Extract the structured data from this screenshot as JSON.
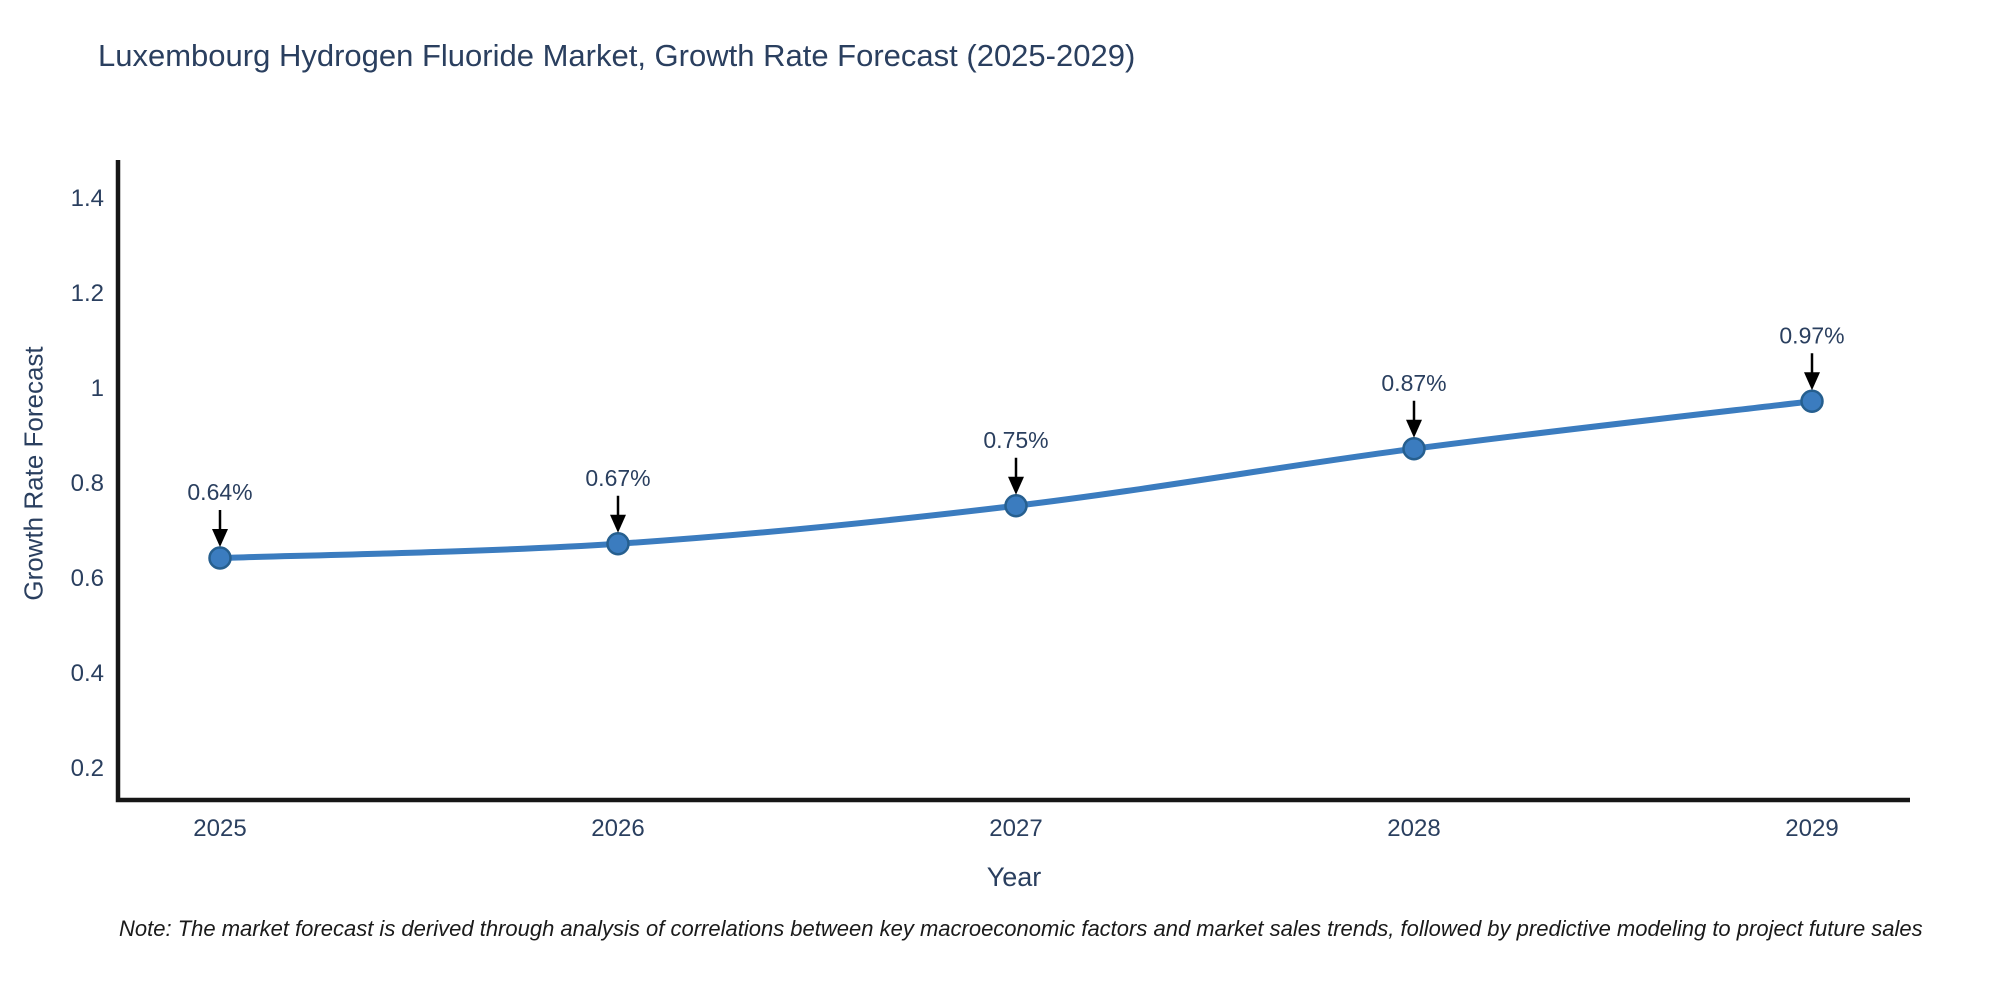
{
  "page": {
    "background": "#ffffff"
  },
  "chart_data": {
    "type": "line",
    "title": "Luxembourg Hydrogen Fluoride Market, Growth Rate Forecast (2025-2029)",
    "xlabel": "Year",
    "ylabel": "Growth Rate Forecast",
    "x": [
      2025,
      2026,
      2027,
      2028,
      2029
    ],
    "series": [
      {
        "name": "Growth Rate Forecast",
        "values": [
          0.64,
          0.67,
          0.75,
          0.87,
          0.97
        ]
      }
    ],
    "point_labels": [
      "0.64%",
      "0.67%",
      "0.75%",
      "0.87%",
      "0.97%"
    ],
    "x_tick_labels": [
      "2025",
      "2026",
      "2027",
      "2028",
      "2029"
    ],
    "y_tick_values": [
      0.2,
      0.4,
      0.6,
      0.8,
      1.0,
      1.2,
      1.4
    ],
    "y_tick_labels": [
      "0.2",
      "0.4",
      "0.6",
      "0.8",
      "1",
      "1.2",
      "1.4"
    ],
    "xlim": [
      2024.74,
      2029.25
    ],
    "ylim": [
      0.13,
      1.48
    ],
    "grid": false,
    "legend": "none",
    "line_shape": "spline",
    "annotations_have_arrows": true,
    "colors": {
      "line": "#3b7cbf",
      "marker_fill": "#3b7cbf",
      "marker_edge": "#265f8f",
      "axis_line": "#161616",
      "text": "#2a3f5f",
      "annotation_text": "#2a3f5f",
      "annotation_arrow": "#000000"
    }
  },
  "note": {
    "text": "Note: The market forecast is derived through analysis of correlations between key macroeconomic factors and market sales trends, followed by predictive modeling to project future sales"
  }
}
